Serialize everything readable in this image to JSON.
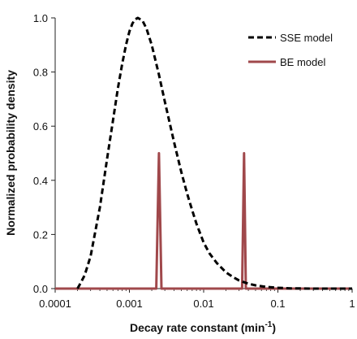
{
  "chart_data": {
    "type": "line",
    "xlabel": "Decay rate constant (min",
    "xlabel_sup": "-1",
    "xlabel_close": ")",
    "ylabel": "Normalized probability density",
    "x_scale": "log",
    "xlim": [
      0.0001,
      1
    ],
    "ylim": [
      0,
      1.0
    ],
    "x_ticks": [
      0.0001,
      0.001,
      0.01,
      0.1,
      1
    ],
    "x_tick_labels": [
      "0.0001",
      "0.001",
      "0.01",
      "0.1",
      "1"
    ],
    "y_ticks": [
      0,
      0.2,
      0.4,
      0.6,
      0.8,
      1.0
    ],
    "y_tick_labels": [
      "0.0",
      "0.2",
      "0.4",
      "0.6",
      "0.8",
      "1.0"
    ],
    "grid": false,
    "legend_position": "top-right",
    "series": [
      {
        "name": "SSE model",
        "style": "dashed",
        "color": "#000000",
        "x": [
          0.0002,
          0.00022,
          0.00025,
          0.0003,
          0.0004,
          0.0005,
          0.0006,
          0.0007,
          0.0008,
          0.0009,
          0.001,
          0.0011,
          0.0012,
          0.0013,
          0.0015,
          0.0017,
          0.002,
          0.0025,
          0.003,
          0.004,
          0.005,
          0.006,
          0.007,
          0.008,
          0.01,
          0.012,
          0.015,
          0.02,
          0.025,
          0.03,
          0.04,
          0.05,
          0.07,
          0.1,
          0.15,
          0.2,
          0.3,
          0.5,
          1
        ],
        "y": [
          0.0,
          0.02,
          0.05,
          0.12,
          0.3,
          0.48,
          0.62,
          0.74,
          0.83,
          0.9,
          0.95,
          0.98,
          0.995,
          1.0,
          0.99,
          0.96,
          0.9,
          0.79,
          0.69,
          0.54,
          0.43,
          0.35,
          0.29,
          0.24,
          0.17,
          0.13,
          0.095,
          0.06,
          0.042,
          0.03,
          0.018,
          0.012,
          0.006,
          0.003,
          0.001,
          0.0005,
          0.0,
          0.0,
          0.0
        ]
      },
      {
        "name": "BE model",
        "style": "solid",
        "color": "#a0484b",
        "x": [
          0.0001,
          0.0023,
          0.0025,
          0.0027,
          0.033,
          0.035,
          0.037,
          1
        ],
        "y": [
          0.0,
          0.0,
          0.5,
          0.0,
          0.0,
          0.5,
          0.0,
          0.0
        ]
      }
    ]
  }
}
